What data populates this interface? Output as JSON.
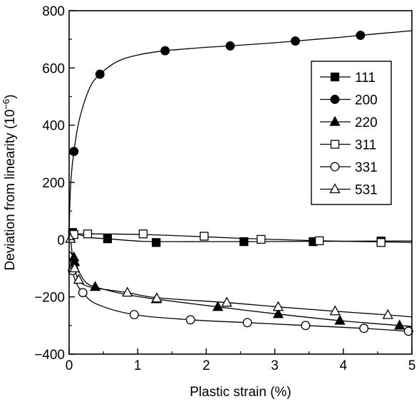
{
  "chart_data": {
    "type": "line",
    "title": "",
    "xlabel": "Plastic strain (%)",
    "ylabel_main": "Deviation from linearity (10",
    "ylabel_exp": "−6",
    "ylabel_close": ")",
    "xlim": [
      0,
      5
    ],
    "ylim": [
      -400,
      800
    ],
    "x_ticks": [
      0,
      1,
      2,
      3,
      4,
      5
    ],
    "x_tick_labels": [
      "0",
      "1",
      "2",
      "3",
      "4",
      "5"
    ],
    "y_ticks": [
      -400,
      -200,
      0,
      200,
      400,
      600,
      800
    ],
    "y_tick_labels": [
      "−400",
      "−200",
      "0",
      "200",
      "400",
      "600",
      "800"
    ],
    "grid": false,
    "legend_position": "right, upper middle",
    "series": [
      {
        "name": "111",
        "marker": "filled-square",
        "points": [
          [
            0.05,
            25
          ],
          [
            0.56,
            3
          ],
          [
            1.27,
            -10
          ],
          [
            2.55,
            -7
          ],
          [
            3.56,
            -7
          ],
          [
            4.55,
            -5
          ]
        ],
        "curve": [
          [
            0,
            30
          ],
          [
            0.05,
            25
          ],
          [
            0.3,
            8
          ],
          [
            0.56,
            3
          ],
          [
            1.0,
            -5
          ],
          [
            1.27,
            -7
          ],
          [
            2.0,
            -7
          ],
          [
            2.55,
            -7
          ],
          [
            3.56,
            -6
          ],
          [
            4.55,
            -5
          ],
          [
            5.0,
            -5
          ]
        ]
      },
      {
        "name": "200",
        "marker": "filled-circle",
        "points": [
          [
            0.07,
            308
          ],
          [
            0.45,
            578
          ],
          [
            1.4,
            660
          ],
          [
            2.35,
            677
          ],
          [
            3.3,
            694
          ],
          [
            4.25,
            714
          ]
        ],
        "curve": [
          [
            0,
            0
          ],
          [
            0.01,
            120
          ],
          [
            0.03,
            220
          ],
          [
            0.07,
            308
          ],
          [
            0.15,
            420
          ],
          [
            0.3,
            530
          ],
          [
            0.45,
            578
          ],
          [
            0.7,
            622
          ],
          [
            1.0,
            645
          ],
          [
            1.4,
            660
          ],
          [
            2.0,
            672
          ],
          [
            2.35,
            677
          ],
          [
            3.0,
            688
          ],
          [
            3.3,
            694
          ],
          [
            4.0,
            708
          ],
          [
            4.25,
            714
          ],
          [
            5.0,
            730
          ]
        ]
      },
      {
        "name": "220",
        "marker": "filled-triangle",
        "points": [
          [
            0.07,
            -62
          ],
          [
            0.08,
            -78
          ],
          [
            0.38,
            -165
          ],
          [
            1.27,
            -208
          ],
          [
            2.17,
            -235
          ],
          [
            3.05,
            -260
          ],
          [
            3.95,
            -283
          ],
          [
            4.82,
            -300
          ]
        ],
        "curve": [
          [
            0.0,
            -40
          ],
          [
            0.07,
            -62
          ],
          [
            0.15,
            -115
          ],
          [
            0.25,
            -150
          ],
          [
            0.38,
            -165
          ],
          [
            0.8,
            -190
          ],
          [
            1.27,
            -208
          ],
          [
            2.17,
            -235
          ],
          [
            3.05,
            -260
          ],
          [
            3.95,
            -283
          ],
          [
            4.82,
            -300
          ],
          [
            5.0,
            -303
          ]
        ]
      },
      {
        "name": "311",
        "marker": "open-square",
        "points": [
          [
            0.07,
            18
          ],
          [
            0.27,
            20
          ],
          [
            1.08,
            20
          ],
          [
            1.97,
            12
          ],
          [
            2.8,
            1
          ],
          [
            3.65,
            -4
          ],
          [
            4.55,
            -10
          ]
        ],
        "curve": [
          [
            0,
            10
          ],
          [
            0.07,
            18
          ],
          [
            0.27,
            20
          ],
          [
            1.08,
            18
          ],
          [
            1.97,
            10
          ],
          [
            2.8,
            2
          ],
          [
            3.65,
            -4
          ],
          [
            4.55,
            -8
          ],
          [
            5.0,
            -10
          ]
        ]
      },
      {
        "name": "331",
        "marker": "open-circle",
        "points": [
          [
            0.05,
            -108
          ],
          [
            0.2,
            -185
          ],
          [
            0.95,
            -262
          ],
          [
            1.77,
            -280
          ],
          [
            2.6,
            -290
          ],
          [
            3.45,
            -300
          ],
          [
            4.3,
            -310
          ],
          [
            4.95,
            -320
          ]
        ],
        "curve": [
          [
            0.0,
            -60
          ],
          [
            0.05,
            -108
          ],
          [
            0.1,
            -150
          ],
          [
            0.2,
            -185
          ],
          [
            0.4,
            -225
          ],
          [
            0.95,
            -262
          ],
          [
            1.77,
            -280
          ],
          [
            2.6,
            -290
          ],
          [
            3.45,
            -300
          ],
          [
            4.3,
            -310
          ],
          [
            4.95,
            -320
          ],
          [
            5.0,
            -320
          ]
        ]
      },
      {
        "name": "531",
        "marker": "open-triangle",
        "points": [
          [
            0.02,
            3
          ],
          [
            0.08,
            -100
          ],
          [
            0.14,
            -140
          ],
          [
            0.85,
            -185
          ],
          [
            1.28,
            -205
          ],
          [
            2.3,
            -220
          ],
          [
            3.05,
            -235
          ],
          [
            3.88,
            -250
          ],
          [
            4.65,
            -263
          ]
        ],
        "curve": [
          [
            0.0,
            0
          ],
          [
            0.02,
            3
          ],
          [
            0.05,
            -60
          ],
          [
            0.08,
            -100
          ],
          [
            0.14,
            -140
          ],
          [
            0.3,
            -165
          ],
          [
            0.85,
            -185
          ],
          [
            1.28,
            -203
          ],
          [
            2.3,
            -220
          ],
          [
            3.05,
            -235
          ],
          [
            3.88,
            -250
          ],
          [
            4.65,
            -263
          ],
          [
            5.0,
            -270
          ]
        ]
      }
    ]
  }
}
